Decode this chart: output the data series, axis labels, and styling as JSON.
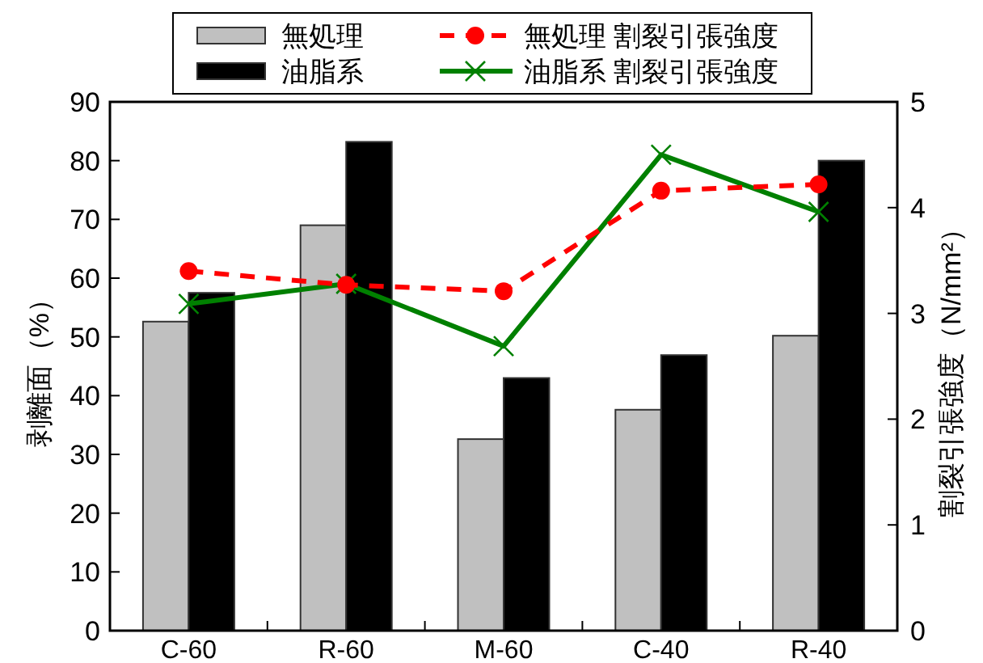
{
  "chart_data": {
    "type": "bar",
    "ylabel": "剥離面（%）",
    "y2label": "割裂引張強度（N/mm²）",
    "categories": [
      "C-60",
      "R-60",
      "M-60",
      "C-40",
      "R-40"
    ],
    "series": [
      {
        "name": "無処理",
        "type": "bar",
        "color": "#c0c0c0",
        "values": [
          52.6,
          69.0,
          32.6,
          37.6,
          50.2
        ]
      },
      {
        "name": "油脂系",
        "type": "bar",
        "color": "#000000",
        "values": [
          57.5,
          83.2,
          43.0,
          46.9,
          80.0
        ]
      },
      {
        "name": "無処理 割裂引張強度",
        "type": "line",
        "axis": "y2",
        "color": "#ff0000",
        "marker": "circle",
        "line_style": "dashed",
        "values": [
          3.4,
          3.27,
          3.21,
          4.16,
          4.22
        ]
      },
      {
        "name": "油脂系 割裂引張強度",
        "type": "line",
        "axis": "y2",
        "color": "#008000",
        "marker": "cross",
        "line_style": "solid",
        "values": [
          3.09,
          3.28,
          2.69,
          4.5,
          3.96
        ]
      }
    ],
    "ylim": [
      0,
      90
    ],
    "yticks": [
      0,
      10,
      20,
      30,
      40,
      50,
      60,
      70,
      80,
      90
    ],
    "y2lim": [
      0,
      5
    ],
    "y2ticks": [
      0,
      1,
      2,
      3,
      4,
      5
    ],
    "legend": "top"
  }
}
